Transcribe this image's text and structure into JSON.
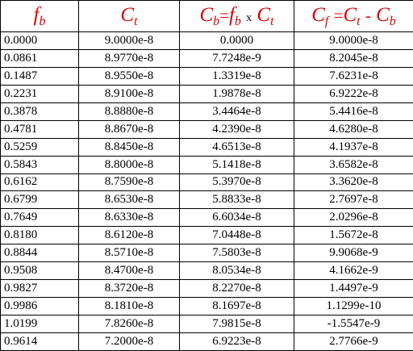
{
  "header": [
    [
      "f",
      "b"
    ],
    [
      "C",
      "t"
    ],
    [
      "C",
      "b",
      "=",
      "f",
      "b",
      "x",
      "C",
      "t"
    ],
    [
      "C",
      "f",
      "=",
      "C",
      "t",
      "-",
      "C",
      "b"
    ]
  ],
  "rows": [
    [
      "0.0000",
      "9.0000e-8",
      "0.0000",
      "9.0000e-8"
    ],
    [
      "0.0861",
      "8.9770e-8",
      "7.7248e-9",
      "8.2045e-8"
    ],
    [
      "0.1487",
      "8.9550e-8",
      "1.3319e-8",
      "7.6231e-8"
    ],
    [
      "0.2231",
      "8.9100e-8",
      "1.9878e-8",
      "6.9222e-8"
    ],
    [
      "0.3878",
      "8.8880e-8",
      "3.4464e-8",
      "5.4416e-8"
    ],
    [
      "0.4781",
      "8.8670e-8",
      "4.2390e-8",
      "4.6280e-8"
    ],
    [
      "0.5259",
      "8.8450e-8",
      "4.6513e-8",
      "4.1937e-8"
    ],
    [
      "0.5843",
      "8.8000e-8",
      "5.1418e-8",
      "3.6582e-8"
    ],
    [
      "0.6162",
      "8.7590e-8",
      "5.3970e-8",
      "3.3620e-8"
    ],
    [
      "0.6799",
      "8.6530e-8",
      "5.8833e-8",
      "2.7697e-8"
    ],
    [
      "0.7649",
      "8.6330e-8",
      "6.6034e-8",
      "2.0296e-8"
    ],
    [
      "0.8180",
      "8.6120e-8",
      "7.0448e-8",
      "1.5672e-8"
    ],
    [
      "0.8844",
      "8.5710e-8",
      "7.5803e-8",
      "9.9068e-9"
    ],
    [
      "0.9508",
      "8.4700e-8",
      "8.0534e-8",
      "4.1662e-9"
    ],
    [
      "0.9827",
      "8.3720e-8",
      "8.2270e-8",
      "1.4497e-9"
    ],
    [
      "0.9986",
      "8.1810e-8",
      "8.1697e-8",
      "1.1299e-10"
    ],
    [
      "1.0199",
      "7.8260e-8",
      "7.9815e-8",
      "-1.5547e-9"
    ],
    [
      "0.9614",
      "7.2000e-8",
      "6.9223e-8",
      "2.7766e-9"
    ]
  ]
}
